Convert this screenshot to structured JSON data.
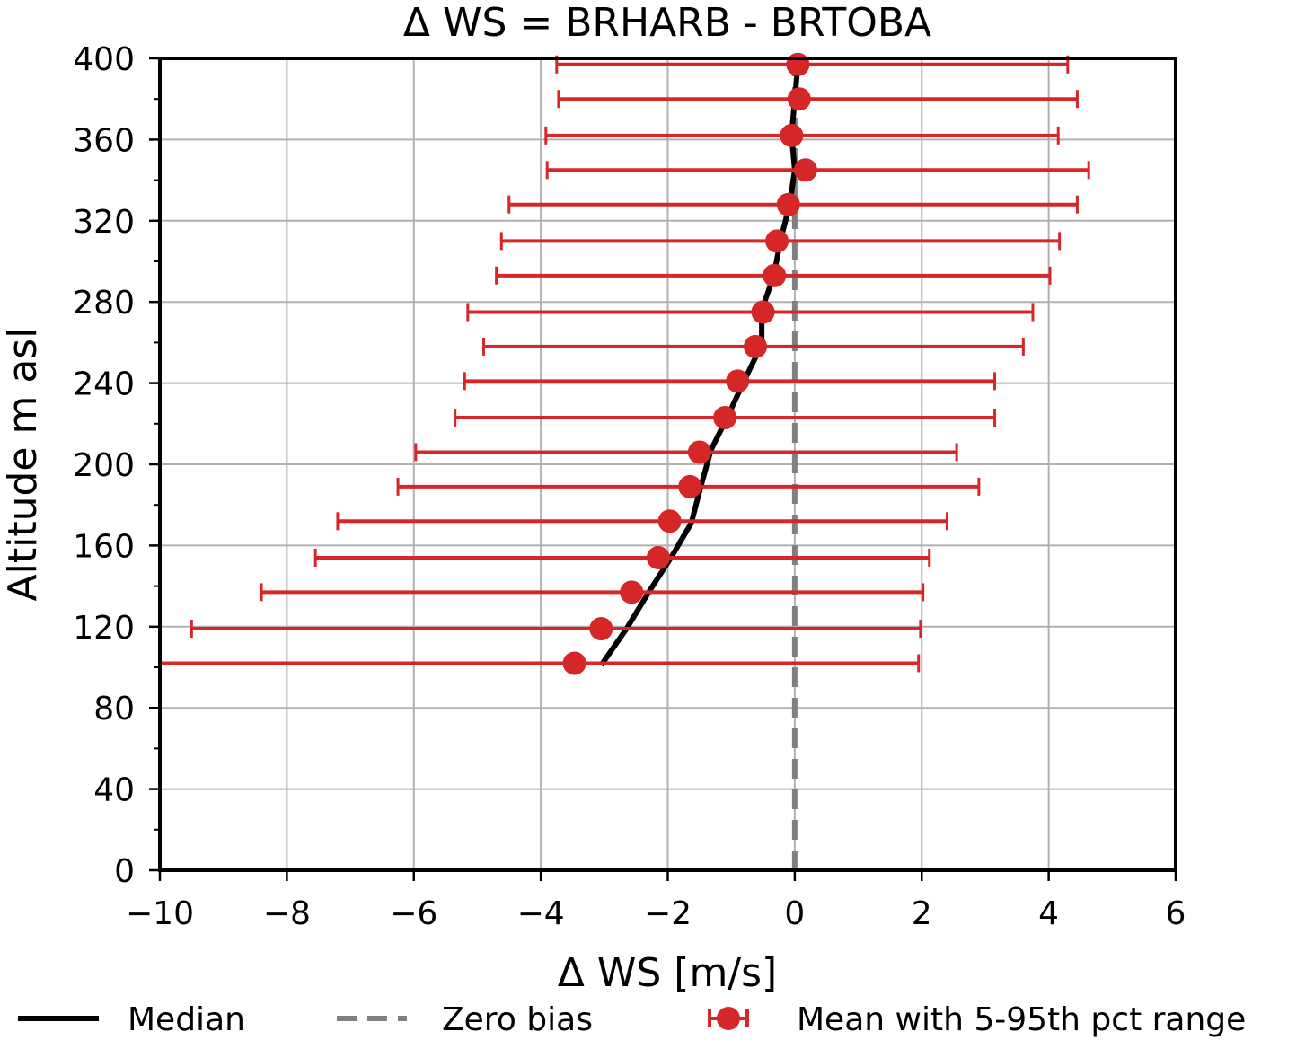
{
  "chart_data": {
    "type": "line",
    "title": "Δ WS = BRHARB - BRTOBA",
    "xlabel": "Δ WS [m/s]",
    "ylabel": "Altitude m asl",
    "xlim": [
      -10,
      6
    ],
    "ylim": [
      0,
      400
    ],
    "xticks": [
      -10,
      -8,
      -6,
      -4,
      -2,
      0,
      2,
      4,
      6
    ],
    "xtick_labels": [
      "−10",
      "−8",
      "−6",
      "−4",
      "−2",
      "0",
      "2",
      "4",
      "6"
    ],
    "yticks": [
      0,
      40,
      80,
      120,
      160,
      200,
      240,
      280,
      320,
      360,
      400
    ],
    "ytick_labels": [
      "0",
      "40",
      "80",
      "120",
      "160",
      "200",
      "240",
      "280",
      "320",
      "360",
      "400"
    ],
    "grid": true,
    "legend_position": "bottom",
    "colors": {
      "median": "#000000",
      "zero_bias": "#808080",
      "mean": "#d62728",
      "grid": "#b0b0b0"
    },
    "series": [
      {
        "name": "Median",
        "style": "solid",
        "points": [
          {
            "x": -3.05,
            "y": 101
          },
          {
            "x": -2.65,
            "y": 119
          },
          {
            "x": -2.3,
            "y": 137
          },
          {
            "x": -1.95,
            "y": 154
          },
          {
            "x": -1.63,
            "y": 171
          },
          {
            "x": -1.48,
            "y": 189
          },
          {
            "x": -1.32,
            "y": 207
          },
          {
            "x": -1.05,
            "y": 224
          },
          {
            "x": -0.8,
            "y": 241
          },
          {
            "x": -0.52,
            "y": 259
          },
          {
            "x": -0.52,
            "y": 276
          },
          {
            "x": -0.33,
            "y": 293
          },
          {
            "x": -0.22,
            "y": 311
          },
          {
            "x": -0.08,
            "y": 328
          },
          {
            "x": 0.0,
            "y": 345
          },
          {
            "x": -0.05,
            "y": 362
          },
          {
            "x": 0.0,
            "y": 380
          },
          {
            "x": 0.05,
            "y": 397
          }
        ]
      },
      {
        "name": "Zero bias",
        "style": "dashed",
        "points": [
          {
            "x": 0,
            "y": 0
          },
          {
            "x": 0,
            "y": 400
          }
        ]
      },
      {
        "name": "Mean with 5-95th pct range",
        "style": "errorbar",
        "points": [
          {
            "y": 102,
            "mean": -3.47,
            "p5": -10.0,
            "p95": 1.95
          },
          {
            "y": 119,
            "mean": -3.05,
            "p5": -9.5,
            "p95": 1.98
          },
          {
            "y": 137,
            "mean": -2.57,
            "p5": -8.4,
            "p95": 2.02
          },
          {
            "y": 154,
            "mean": -2.15,
            "p5": -7.55,
            "p95": 2.12
          },
          {
            "y": 172,
            "mean": -1.97,
            "p5": -7.2,
            "p95": 2.4
          },
          {
            "y": 189,
            "mean": -1.65,
            "p5": -6.25,
            "p95": 2.9
          },
          {
            "y": 206,
            "mean": -1.5,
            "p5": -5.97,
            "p95": 2.55
          },
          {
            "y": 223,
            "mean": -1.1,
            "p5": -5.35,
            "p95": 3.15
          },
          {
            "y": 241,
            "mean": -0.9,
            "p5": -5.2,
            "p95": 3.15
          },
          {
            "y": 258,
            "mean": -0.62,
            "p5": -4.9,
            "p95": 3.6
          },
          {
            "y": 275,
            "mean": -0.5,
            "p5": -5.15,
            "p95": 3.75
          },
          {
            "y": 293,
            "mean": -0.32,
            "p5": -4.7,
            "p95": 4.02
          },
          {
            "y": 310,
            "mean": -0.28,
            "p5": -4.62,
            "p95": 4.17
          },
          {
            "y": 328,
            "mean": -0.1,
            "p5": -4.5,
            "p95": 4.45
          },
          {
            "y": 345,
            "mean": 0.17,
            "p5": -3.9,
            "p95": 4.63
          },
          {
            "y": 362,
            "mean": -0.05,
            "p5": -3.92,
            "p95": 4.15
          },
          {
            "y": 380,
            "mean": 0.07,
            "p5": -3.72,
            "p95": 4.45
          },
          {
            "y": 397,
            "mean": 0.05,
            "p5": -3.75,
            "p95": 4.3
          }
        ]
      }
    ]
  }
}
